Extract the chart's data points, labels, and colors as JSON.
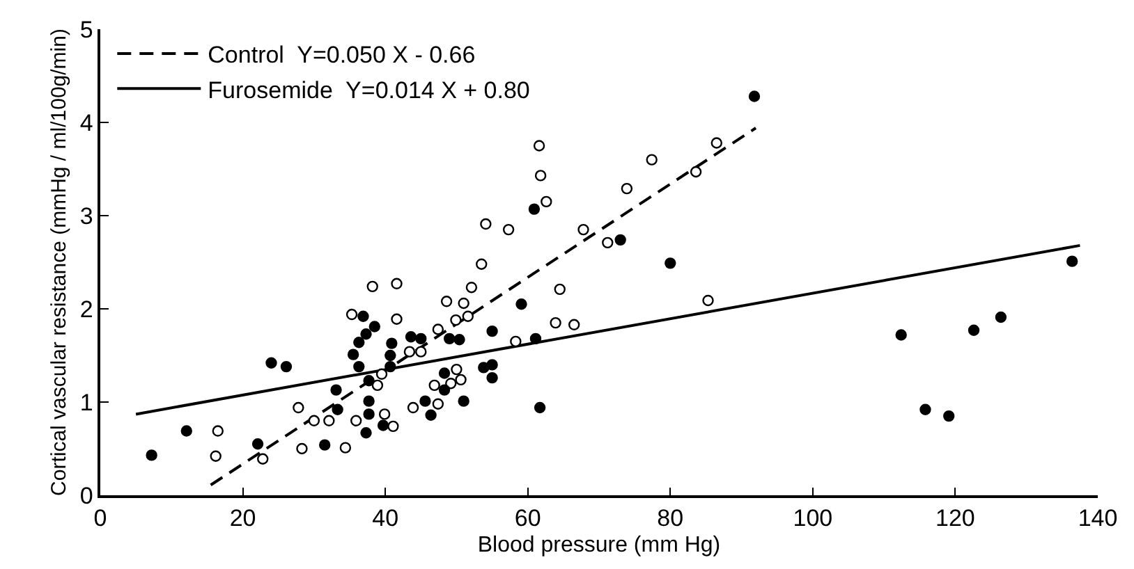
{
  "chart_data": {
    "type": "scatter",
    "xlabel": "Blood pressure (mm Hg)",
    "ylabel": "Cortical vascular resistance (mmHg / ml/100g/min)",
    "xlim": [
      0,
      140
    ],
    "xticks": [
      0,
      20,
      40,
      60,
      80,
      100,
      120,
      140
    ],
    "ylim": [
      0,
      5
    ],
    "yticks": [
      0,
      1,
      2,
      3,
      4,
      5
    ],
    "legend": "top left",
    "series": [
      {
        "type": "line",
        "name": "Control  Y=0.050 X - 0.66",
        "color": "#000000",
        "line_style": "dashed",
        "marker": "none",
        "x": [
          15.5,
          92
        ],
        "values": [
          0.11,
          3.94
        ]
      },
      {
        "type": "line",
        "name": "Furosemide  Y=0.014 X + 0.80",
        "color": "#000000",
        "line_style": "solid",
        "marker": "none",
        "x": [
          5,
          137.5
        ],
        "values": [
          0.87,
          2.68
        ]
      },
      {
        "color": "#ffffff",
        "marker": "circle",
        "x": [
          16.5,
          16.2,
          22.8,
          27.8,
          28.3,
          30,
          32.1,
          34.4,
          35.9,
          35.3,
          38.2,
          41.6,
          41.6,
          38.9,
          39.5,
          39.9,
          41.1,
          43.9,
          43.4,
          45,
          47.4,
          46.9,
          47.4,
          48.6,
          49.2,
          50,
          50.6,
          49.9,
          51,
          51.6,
          52.1,
          53.5,
          54.1,
          61.6,
          61.8,
          62.6,
          57.3,
          67.8,
          71.2,
          77.4,
          73.9,
          86.5,
          83.6,
          85.3,
          64.5,
          63.9,
          66.5,
          58.3
        ],
        "values": [
          0.69,
          0.42,
          0.39,
          0.94,
          0.5,
          0.8,
          0.8,
          0.51,
          0.8,
          1.94,
          2.24,
          2.27,
          1.89,
          1.18,
          1.3,
          0.87,
          0.74,
          0.94,
          1.54,
          1.54,
          1.78,
          1.18,
          0.98,
          2.08,
          1.2,
          1.35,
          1.24,
          1.88,
          2.06,
          1.92,
          2.23,
          2.48,
          2.91,
          3.75,
          3.43,
          3.15,
          2.85,
          2.85,
          2.71,
          3.6,
          3.29,
          3.78,
          3.47,
          2.09,
          2.21,
          1.85,
          1.83,
          1.65
        ]
      },
      {
        "color": "#000000",
        "marker": "circle",
        "x": [
          7.2,
          12.1,
          24,
          26.1,
          22.1,
          31.5,
          33.1,
          33.3,
          35.5,
          36.3,
          36.9,
          37.3,
          38.5,
          36.3,
          37.3,
          37.7,
          37.7,
          37.7,
          39.7,
          40.9,
          40.7,
          40.7,
          43.6,
          45,
          45.6,
          46.4,
          48.3,
          48.3,
          49,
          50.4,
          51,
          55,
          53.8,
          55,
          55,
          91.8,
          60.9,
          73,
          80,
          59.1,
          61.1,
          61.7,
          112.4,
          115.8,
          119.1,
          122.6,
          126.4,
          136.4
        ],
        "values": [
          0.43,
          0.69,
          1.42,
          1.38,
          0.55,
          0.54,
          1.13,
          0.92,
          1.51,
          1.64,
          1.92,
          1.73,
          1.81,
          1.38,
          0.67,
          0.87,
          1.01,
          1.23,
          0.75,
          1.63,
          1.5,
          1.38,
          1.7,
          1.68,
          1.01,
          0.86,
          1.13,
          1.31,
          1.68,
          1.67,
          1.01,
          1.76,
          1.37,
          1.4,
          1.26,
          4.28,
          3.07,
          2.74,
          2.49,
          2.05,
          1.68,
          0.94,
          1.72,
          0.92,
          0.85,
          1.77,
          1.91,
          2.51
        ]
      }
    ]
  }
}
